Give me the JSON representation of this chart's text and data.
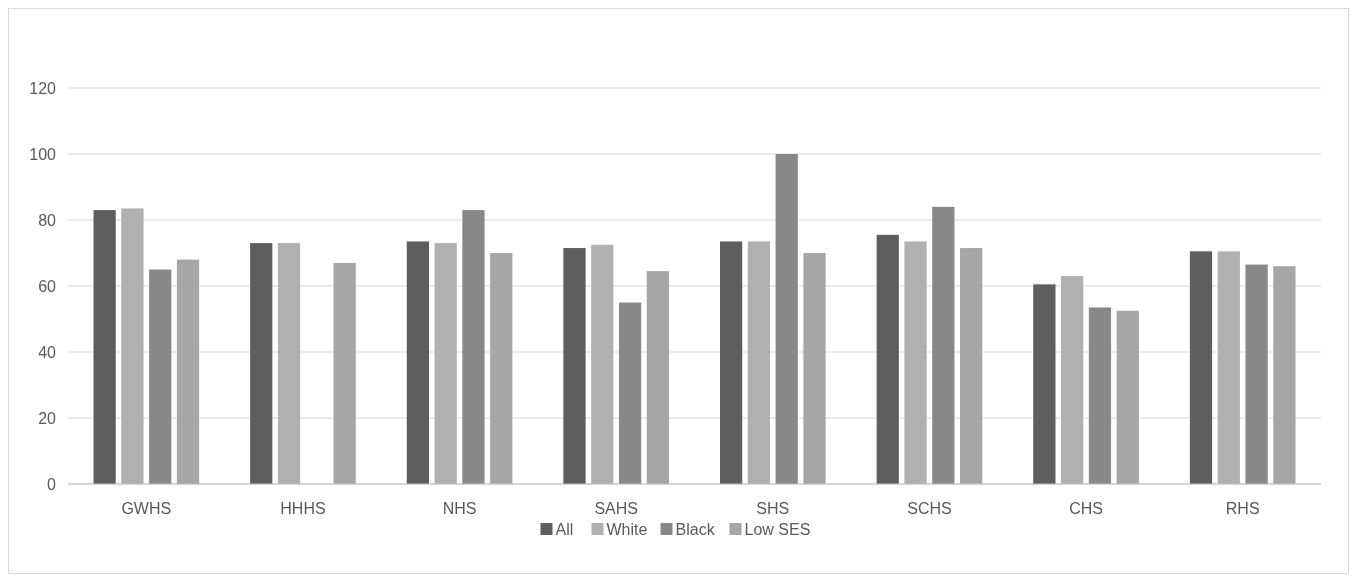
{
  "chart_data": {
    "type": "bar",
    "categories": [
      "GWHS",
      "HHHS",
      "NHS",
      "SAHS",
      "SHS",
      "SCHS",
      "CHS",
      "RHS"
    ],
    "series": [
      {
        "name": "All",
        "color": "#5e5e5e",
        "values": [
          83,
          73,
          73.5,
          71.5,
          73.5,
          75.5,
          60.5,
          70.5
        ]
      },
      {
        "name": "White",
        "color": "#b0b0b0",
        "values": [
          83.5,
          73,
          73,
          72.5,
          73.5,
          73.5,
          63,
          70.5
        ]
      },
      {
        "name": "Black",
        "color": "#888888",
        "values": [
          65,
          null,
          83,
          55,
          100,
          84,
          53.5,
          66.5
        ]
      },
      {
        "name": "Low SES",
        "color": "#a6a6a6",
        "values": [
          68,
          67,
          70,
          64.5,
          70,
          71.5,
          52.5,
          66
        ]
      }
    ],
    "ylim": [
      0,
      120
    ],
    "yticks": [
      0,
      20,
      40,
      60,
      80,
      100,
      120
    ],
    "grid": "y",
    "legend": "bottom"
  }
}
